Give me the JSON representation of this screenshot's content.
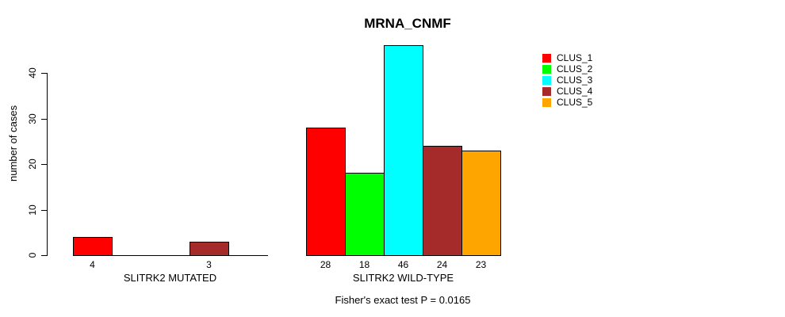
{
  "title": "MRNA_CNMF",
  "ylabel": "number of cases",
  "caption": "Fisher's exact test P = 0.0165",
  "legend": {
    "items": [
      {
        "label": "CLUS_1",
        "color": "#FF0000"
      },
      {
        "label": "CLUS_2",
        "color": "#00FF00"
      },
      {
        "label": "CLUS_3",
        "color": "#00FFFF"
      },
      {
        "label": "CLUS_4",
        "color": "#A52A2A"
      },
      {
        "label": "CLUS_5",
        "color": "#FFA500"
      }
    ]
  },
  "chart_data": {
    "type": "bar",
    "title": "MRNA_CNMF",
    "ylabel": "number of cases",
    "xlabel": "",
    "yticks": [
      0,
      10,
      20,
      30,
      40
    ],
    "ylim": [
      0,
      46
    ],
    "grid": false,
    "legend_position": "top-right",
    "series_names": [
      "CLUS_1",
      "CLUS_2",
      "CLUS_3",
      "CLUS_4",
      "CLUS_5"
    ],
    "series_colors": [
      "#FF0000",
      "#00FF00",
      "#00FFFF",
      "#A52A2A",
      "#FFA500"
    ],
    "groups": [
      {
        "label": "SLITRK2 MUTATED",
        "values": [
          4,
          0,
          0,
          3,
          0
        ],
        "bar_labels": [
          "4",
          "",
          "",
          "3",
          ""
        ]
      },
      {
        "label": "SLITRK2 WILD-TYPE",
        "values": [
          28,
          18,
          46,
          24,
          23
        ],
        "bar_labels": [
          "28",
          "18",
          "46",
          "24",
          "23"
        ]
      }
    ],
    "annotation": "Fisher's exact test P = 0.0165"
  }
}
